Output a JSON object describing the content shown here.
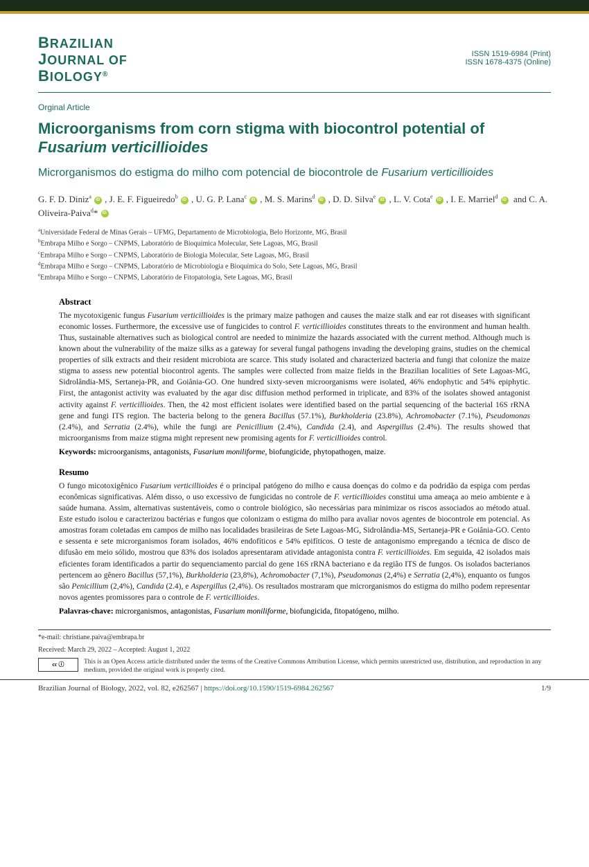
{
  "journal": {
    "line1": "BRAZILIAN",
    "line2": "JOURNAL OF",
    "line3": "BIOLOGY",
    "issn_print": "ISSN 1519-6984 (Print)",
    "issn_online": "ISSN 1678-4375 (Online)"
  },
  "article": {
    "type": "Orginal Article",
    "title_en_1": "Microorganisms from corn stigma with biocontrol potential of ",
    "title_en_italic": "Fusarium verticillioides",
    "title_pt_1": "Microrganismos do estigma do milho com potencial de biocontrole de ",
    "title_pt_italic": "Fusarium verticillioides"
  },
  "authors_html": "G. F. D. Diniz<sup>a</sup> <span class='orcid'></span>, J. E. F. Figueiredo<sup>b</sup> <span class='orcid'></span>, U. G. P. Lana<sup>c</sup> <span class='orcid'></span>, M. S. Marins<sup>d</sup> <span class='orcid'></span>, D. D. Silva<sup>e</sup> <span class='orcid'></span>, L. V. Cota<sup>e</sup> <span class='orcid'></span>, I. E. Marriel<sup>d</sup> <span class='orcid'></span> and C. A. Oliveira-Paiva<sup>d</sup>* <span class='orcid'></span>",
  "affiliations": [
    "<sup>a</sup>Universidade Federal de Minas Gerais – UFMG, Departamento de Microbiologia, Belo Horizonte, MG, Brasil",
    "<sup>b</sup>Embrapa Milho e Sorgo – CNPMS, Laboratório de Bioquímica Molecular, Sete Lagoas, MG, Brasil",
    "<sup>c</sup>Embrapa Milho e Sorgo – CNPMS, Laboratório de Biologia Molecular, Sete Lagoas, MG, Brasil",
    "<sup>d</sup>Embrapa Milho e Sorgo – CNPMS, Laboratório de Microbiologia e Bioquímica do Solo, Sete Lagoas, MG, Brasil",
    "<sup>e</sup>Embrapa Milho e Sorgo – CNPMS, Laboratório de Fitopatologia, Sete Lagoas, MG, Brasil"
  ],
  "abstract": {
    "title": "Abstract",
    "text": "The mycotoxigenic fungus <span class='italic'>Fusarium verticillioides</span> is the primary maize pathogen and causes the maize stalk and ear rot diseases with significant economic losses. Furthermore, the excessive use of fungicides to control <span class='italic'>F. verticillioides</span> constitutes threats to the environment and human health. Thus, sustainable alternatives such as biological control are needed to minimize the hazards associated with the current method. Although much is known about the vulnerability of the maize silks as a gateway for several fungal pathogens invading the developing grains, studies on the chemical properties of silk extracts and their resident microbiota are scarce. This study isolated and characterized bacteria and fungi that colonize the maize stigma to assess new potential biocontrol agents. The samples were collected from maize fields in the Brazilian localities of Sete Lagoas-MG, Sidrolândia-MS, Sertaneja-PR, and Goiânia-GO. One hundred sixty-seven microorganisms were isolated, 46% endophytic and 54% epiphytic. First, the antagonist activity was evaluated by the agar disc diffusion method performed in triplicate, and 83% of the isolates showed antagonist activity against <span class='italic'>F. verticillioides</span>. Then, the 42 most efficient isolates were identified based on the partial sequencing of the bacterial 16S rRNA gene and fungi ITS region. The bacteria belong to the genera <span class='italic'>Bacillus</span> (57.1%), <span class='italic'>Burkholderia</span> (23.8%), <span class='italic'>Achromobacter</span> (7.1%), <span class='italic'>Pseudomonas</span> (2.4%), and <span class='italic'>Serratia</span> (2.4%), while the fungi are <span class='italic'>Penicillium</span> (2.4%), <span class='italic'>Candida</span> (2.4), and <span class='italic'>Aspergillus</span> (2.4%). The results showed that microorganisms from maize stigma might represent new promising agents for <span class='italic'>F. verticillioides</span> control.",
    "keywords_label": "Keywords:",
    "keywords": " microorganisms, antagonists, <span class='italic'>Fusarium moniliforme</span>, biofungicide, phytopathogen, maize."
  },
  "resumo": {
    "title": "Resumo",
    "text": "O fungo micotoxigênico <span class='italic'>Fusarium verticillioides</span> é o principal patógeno do milho e causa doenças do colmo e da podridão da espiga com perdas econômicas significativas. Além disso, o uso excessivo de fungicidas no controle de <span class='italic'>F. verticillioides</span> constitui uma ameaça ao meio ambiente e à saúde humana. Assim, alternativas sustentáveis, como o controle biológico, são necessárias para minimizar os riscos associados ao método atual. Este estudo isolou e caracterizou bactérias e fungos que colonizam o estigma do milho para avaliar novos agentes de biocontrole em potencial. As amostras foram coletadas em campos de milho nas localidades brasileiras de Sete Lagoas-MG, Sidrolândia-MS, Sertaneja-PR e Goiânia-GO. Cento e sessenta e sete microrganismos foram isolados, 46% endofíticos e 54% epifíticos. O teste de antagonismo empregando a técnica de disco de difusão em meio sólido, mostrou que 83% dos isolados apresentaram atividade antagonista contra <span class='italic'>F. verticillioides</span>. Em seguida, 42 isolados mais eficientes foram identificados a partir do sequenciamento parcial do gene 16S rRNA bacteriano e da região ITS de fungos. Os isolados bacterianos pertencem ao gênero <span class='italic'>Bacillus</span> (57,1%), <span class='italic'>Burkholderia</span> (23,8%), <span class='italic'>Achromobacter</span> (7,1%), <span class='italic'>Pseudomonas</span> (2,4%) e <span class='italic'>Serratia</span> (2,4%), enquanto os fungos são <span class='italic'>Penicillium</span> (2,4%), <span class='italic'>Candida</span> (2.4), e <span class='italic'>Aspergillus</span> (2,4%). Os resultados mostraram que microrganismos do estigma do milho podem representar novos agentes promissores para o controle de <span class='italic'>F. verticillioides</span>.",
    "keywords_label": "Palavras-chave:",
    "keywords": " microrganismos, antagonistas, <span class='italic'>Fusarium moniliforme</span>, biofungicida, fitopatógeno, milho."
  },
  "footer": {
    "email": "*e-mail: christiane.paiva@embrapa.br",
    "dates": "Received: March 29, 2022 – Accepted: August 1, 2022",
    "cc_badge": "cc ⓘ",
    "cc_text": "This is an Open Access article distributed under the terms of the Creative Commons Attribution License, which permits unrestricted use, distribution, and reproduction in any medium, provided the original work is properly cited.",
    "citation": "Brazilian Journal of Biology, 2022, vol. 82, e262567  |  ",
    "doi": "https://doi.org/10.1590/1519-6984.262567",
    "page": "1/9"
  }
}
